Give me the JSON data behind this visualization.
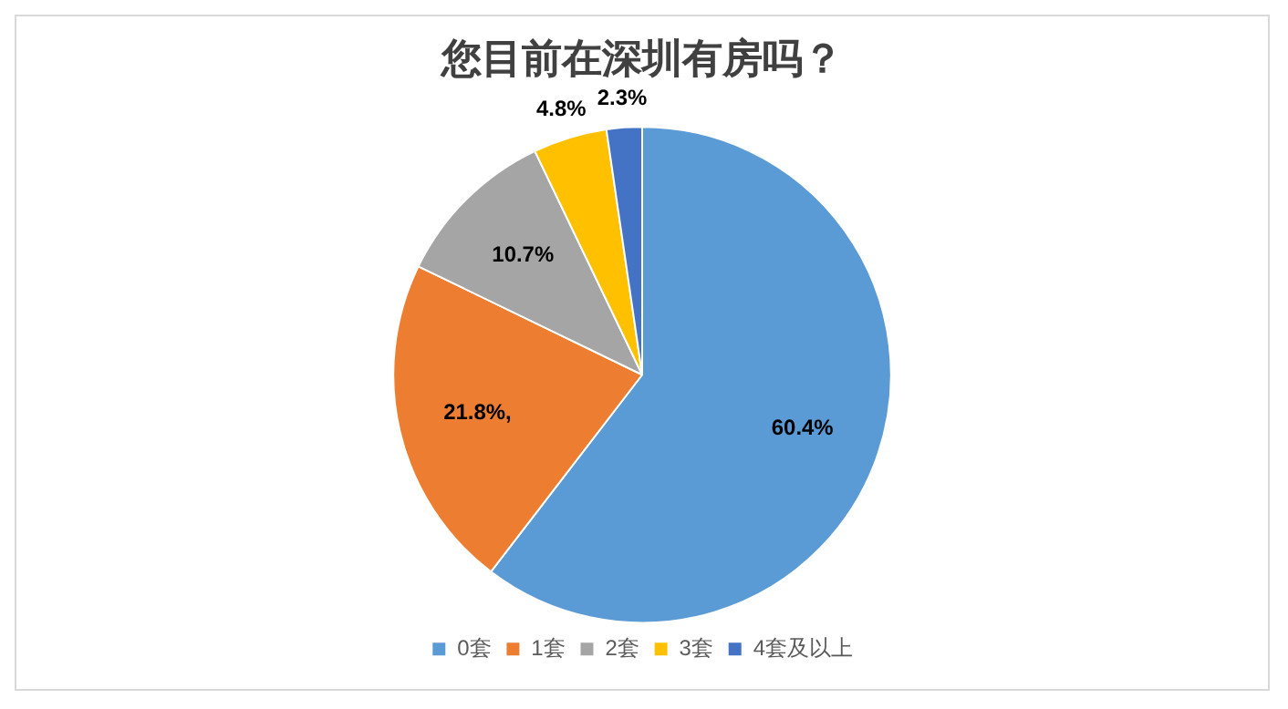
{
  "chart_data": {
    "type": "pie",
    "title": "您目前在深圳有房吗？",
    "categories": [
      "0套",
      "1套",
      "2套",
      "3套",
      "4套及以上"
    ],
    "values": [
      60.4,
      21.8,
      10.7,
      4.8,
      2.3
    ],
    "colors": [
      "#5b9bd5",
      "#ed7d31",
      "#a5a5a5",
      "#ffc000",
      "#4472c4"
    ],
    "value_labels": [
      "60.4%",
      "21.8%,",
      "10.7%",
      "4.8%",
      "2.3%"
    ],
    "legend": "bottom"
  }
}
